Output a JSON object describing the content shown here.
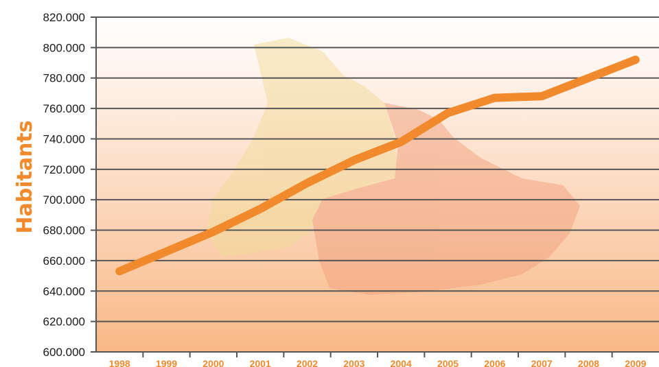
{
  "chart_data": {
    "type": "line",
    "title": "",
    "xlabel": "",
    "ylabel": "Habitants",
    "categories": [
      "1998",
      "1999",
      "2000",
      "2001",
      "2002",
      "2003",
      "2004",
      "2005",
      "2006",
      "2007",
      "2008",
      "2009"
    ],
    "series": [
      {
        "name": "",
        "values": [
          653000,
          666000,
          679000,
          694000,
          711000,
          726000,
          738000,
          757000,
          767000,
          768000,
          780000,
          792000
        ]
      }
    ],
    "ylim": [
      600000,
      820000
    ],
    "yticks": [
      600000,
      620000,
      640000,
      660000,
      680000,
      700000,
      720000,
      740000,
      760000,
      780000,
      800000,
      820000
    ],
    "ytick_labels": [
      "600.000",
      "620.000",
      "640.000",
      "660.000",
      "680.000",
      "700.000",
      "720.000",
      "740.000",
      "760.000",
      "780.000",
      "800.000",
      "820.000"
    ],
    "grid": true,
    "colors": {
      "line": "#f08a2c",
      "grid": "#555555",
      "bg_top": "#ffffff",
      "bg_bottom": "#f9b886",
      "map_light": "#f2dc9a",
      "map_dark": "#f1a07d"
    }
  }
}
